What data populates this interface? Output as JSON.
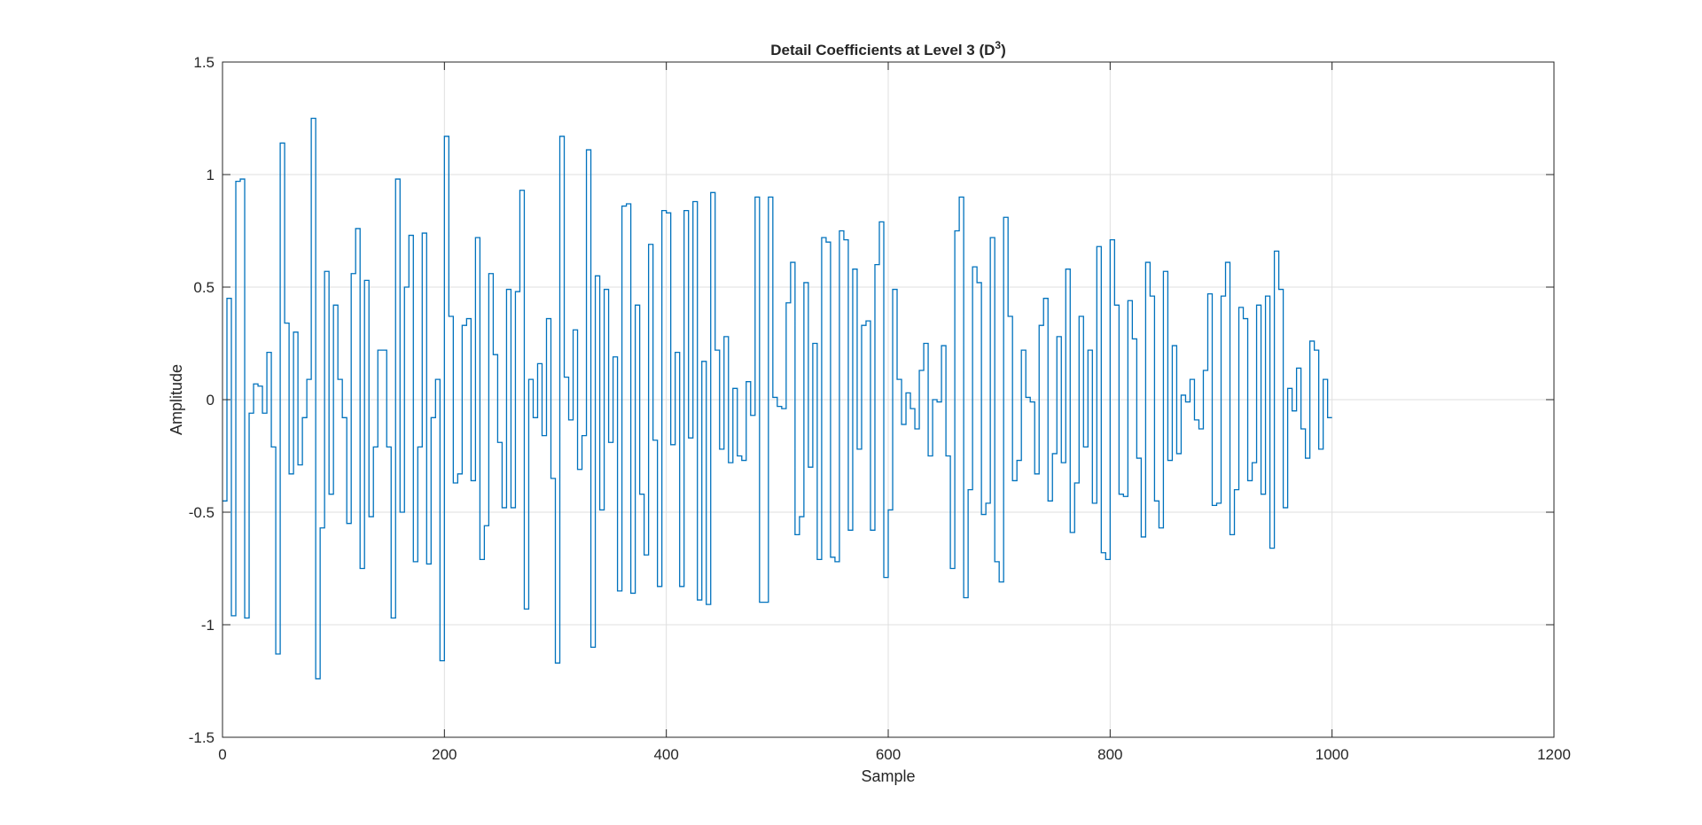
{
  "chart_data": {
    "type": "line",
    "step": true,
    "title": "Detail Coefficients at Level 3 (D",
    "title_superscript": "3",
    "title_suffix": ")",
    "xlabel": "Sample",
    "ylabel": "Amplitude",
    "xlim": [
      0,
      1200
    ],
    "ylim": [
      -1.5,
      1.5
    ],
    "xticks": [
      0,
      200,
      400,
      600,
      800,
      1000,
      1200
    ],
    "yticks": [
      -1.5,
      -1,
      -0.5,
      0,
      0.5,
      1,
      1.5
    ],
    "xtick_labels": [
      "0",
      "200",
      "400",
      "600",
      "800",
      "1000",
      "1200"
    ],
    "ytick_labels": [
      "-1.5",
      "-1",
      "-0.5",
      "0",
      "0.5",
      "1",
      "1.5"
    ],
    "grid": true,
    "line_color": "#0072BD",
    "sample_spacing": 4,
    "series": [
      {
        "values": [
          -0.45,
          0.45,
          -0.96,
          0.97,
          0.98,
          -0.97,
          -0.06,
          0.07,
          0.06,
          -0.06,
          0.21,
          -0.21,
          -1.13,
          1.14,
          0.34,
          -0.33,
          0.3,
          -0.29,
          -0.08,
          0.09,
          1.25,
          -1.24,
          -0.57,
          0.57,
          -0.42,
          0.42,
          0.09,
          -0.08,
          -0.55,
          0.56,
          0.76,
          -0.75,
          0.53,
          -0.52,
          -0.21,
          0.22,
          0.22,
          -0.21,
          -0.97,
          0.98,
          -0.5,
          0.5,
          0.73,
          -0.72,
          -0.21,
          0.74,
          -0.73,
          -0.08,
          0.09,
          -1.16,
          1.17,
          0.37,
          -0.37,
          -0.33,
          0.33,
          0.36,
          -0.36,
          0.72,
          -0.71,
          -0.56,
          0.56,
          0.2,
          -0.19,
          -0.48,
          0.49,
          -0.48,
          0.48,
          0.93,
          -0.93,
          0.09,
          -0.08,
          0.16,
          -0.16,
          0.36,
          -0.35,
          -1.17,
          1.17,
          0.1,
          -0.09,
          0.31,
          -0.31,
          -0.16,
          1.11,
          -1.1,
          0.55,
          -0.49,
          0.49,
          -0.19,
          0.19,
          -0.85,
          0.86,
          0.87,
          -0.86,
          0.42,
          -0.42,
          -0.69,
          0.69,
          -0.18,
          -0.83,
          0.84,
          0.83,
          -0.2,
          0.21,
          -0.83,
          0.84,
          -0.17,
          0.88,
          -0.89,
          0.17,
          -0.91,
          0.92,
          0.22,
          -0.22,
          0.28,
          -0.28,
          0.05,
          -0.25,
          -0.27,
          0.08,
          -0.07,
          0.9,
          -0.9,
          -0.9,
          0.9,
          0.01,
          -0.03,
          -0.04,
          0.43,
          0.61,
          -0.6,
          -0.52,
          0.52,
          -0.3,
          0.25,
          -0.71,
          0.72,
          0.7,
          -0.7,
          -0.72,
          0.75,
          0.71,
          -0.58,
          0.58,
          -0.22,
          0.33,
          0.35,
          -0.58,
          0.6,
          0.79,
          -0.79,
          -0.49,
          0.49,
          0.09,
          -0.11,
          0.03,
          -0.04,
          -0.13,
          0.13,
          0.25,
          -0.25,
          0.0,
          -0.01,
          0.24,
          -0.25,
          -0.75,
          0.75,
          0.9,
          -0.88,
          -0.4,
          0.59,
          0.52,
          -0.51,
          -0.46,
          0.72,
          -0.72,
          -0.81,
          0.81,
          0.37,
          -0.36,
          -0.27,
          0.22,
          0.01,
          -0.01,
          -0.33,
          0.33,
          0.45,
          -0.45,
          -0.24,
          0.28,
          -0.28,
          0.58,
          -0.59,
          -0.37,
          0.37,
          -0.21,
          0.22,
          -0.46,
          0.68,
          -0.68,
          -0.71,
          0.71,
          0.42,
          -0.42,
          -0.43,
          0.44,
          0.27,
          -0.26,
          -0.61,
          0.61,
          0.46,
          -0.45,
          -0.57,
          0.57,
          -0.27,
          0.24,
          -0.24,
          0.02,
          -0.01,
          0.09,
          -0.09,
          -0.13,
          0.13,
          0.47,
          -0.47,
          -0.46,
          0.46,
          0.61,
          -0.6,
          -0.4,
          0.41,
          0.36,
          -0.36,
          -0.28,
          0.42,
          -0.42,
          0.46,
          -0.66,
          0.66,
          0.49,
          -0.48,
          0.05,
          -0.05,
          0.14,
          -0.13,
          -0.26,
          0.26,
          0.22,
          -0.22,
          0.09,
          -0.08
        ]
      }
    ]
  }
}
